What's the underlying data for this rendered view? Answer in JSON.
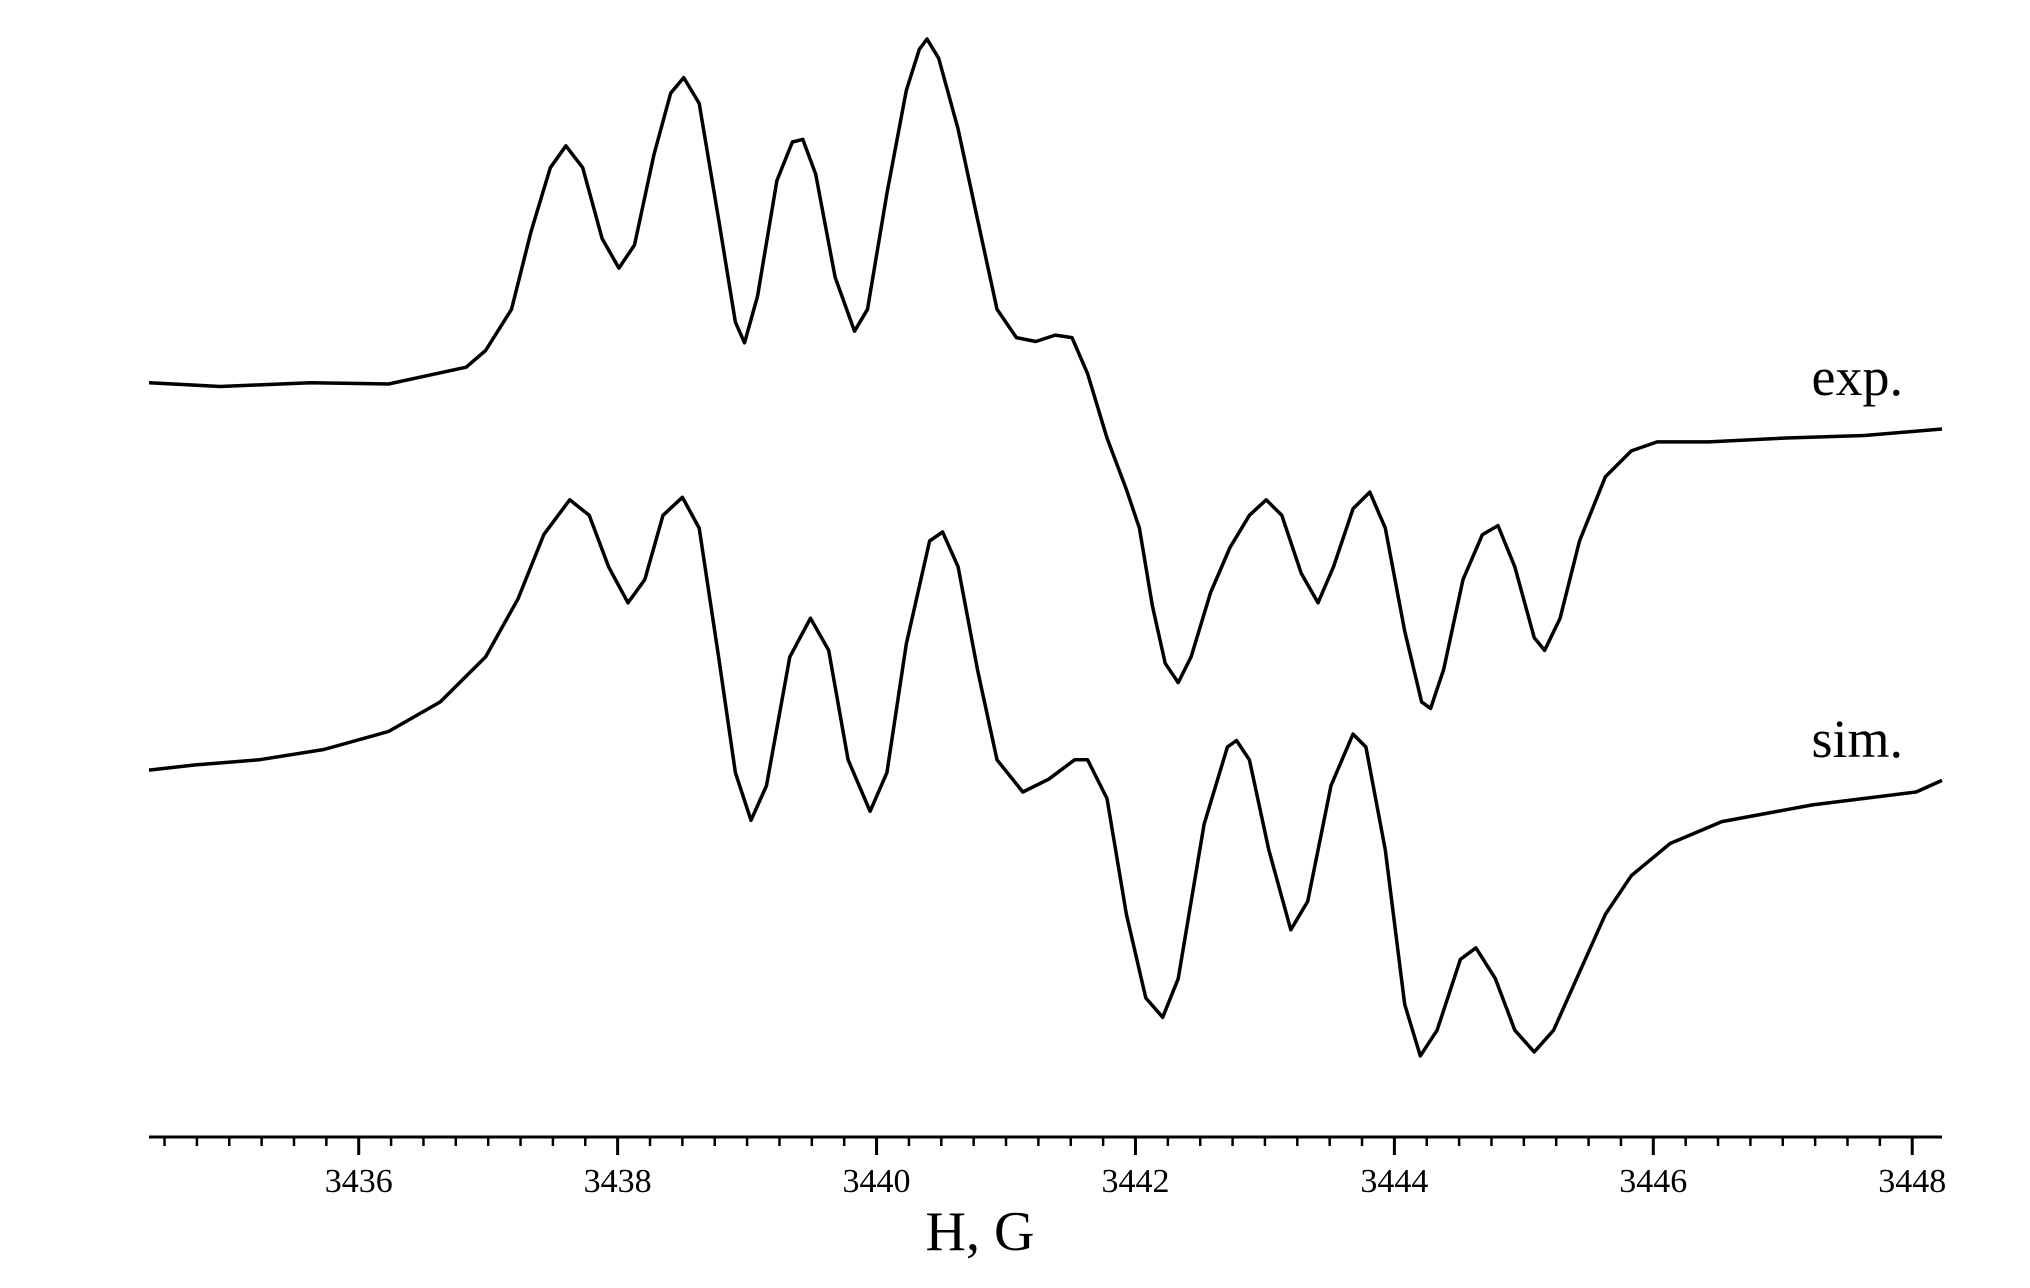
{
  "chart_data": {
    "type": "line",
    "x_label": "H, G",
    "annotations": [
      "exp.",
      "sim."
    ],
    "xlim": [
      3434.38,
      3448.23
    ],
    "xticks": [
      3436,
      3438,
      3440,
      3442,
      3444,
      3446,
      3448
    ],
    "xminorticks": [
      3434.5,
      3434.75,
      3435,
      3435.25,
      3435.5,
      3435.75,
      3436,
      3436.25,
      3436.5,
      3436.75,
      3437,
      3437.25,
      3437.5,
      3437.75,
      3438,
      3438.25,
      3438.5,
      3438.75,
      3439,
      3439.25,
      3439.5,
      3439.75,
      3440,
      3440.25,
      3440.5,
      3440.75,
      3441,
      3441.25,
      3441.5,
      3441.75,
      3442,
      3442.25,
      3442.5,
      3442.75,
      3443,
      3443.25,
      3443.5,
      3443.75,
      3444,
      3444.25,
      3444.5,
      3444.75,
      3445,
      3445.25,
      3445.5,
      3445.75,
      3446,
      3446.25,
      3446.5,
      3446.75,
      3447,
      3447.25,
      3447.5,
      3447.75,
      3448
    ],
    "color": "#000000",
    "series": [
      {
        "x": [
          3434.38,
          3434.93,
          3435.63,
          3436.23,
          3436.83,
          3436.98,
          3437.18,
          3437.33,
          3437.48,
          3437.6,
          3437.73,
          3437.88,
          3438.01,
          3438.13,
          3438.28,
          3438.41,
          3438.51,
          3438.63,
          3438.78,
          3438.91,
          3438.98,
          3439.08,
          3439.23,
          3439.35,
          3439.43,
          3439.53,
          3439.68,
          3439.83,
          3439.93,
          3440.08,
          3440.23,
          3440.33,
          3440.39,
          3440.48,
          3440.63,
          3440.78,
          3440.93,
          3441.08,
          3441.23,
          3441.38,
          3441.51,
          3441.63,
          3441.78,
          3441.93,
          3442.03,
          3442.13,
          3442.23,
          3442.33,
          3442.43,
          3442.58,
          3442.73,
          3442.88,
          3443.01,
          3443.13,
          3443.28,
          3443.41,
          3443.53,
          3443.68,
          3443.81,
          3443.93,
          3444.08,
          3444.21,
          3444.28,
          3444.38,
          3444.53,
          3444.68,
          3444.8,
          3444.93,
          3445.08,
          3445.16,
          3445.28,
          3445.43,
          3445.63,
          3445.83,
          3446.03,
          3446.43,
          3447.03,
          3447.63,
          3448.23
        ],
        "values": [
          586,
          583,
          586,
          585,
          598,
          611,
          643,
          703,
          753,
          770,
          753,
          698,
          675,
          693,
          763,
          811,
          823,
          803,
          713,
          633,
          617,
          653,
          743,
          773,
          775,
          748,
          668,
          626,
          643,
          733,
          813,
          845,
          853,
          838,
          783,
          713,
          643,
          621,
          618,
          623,
          621,
          593,
          543,
          503,
          473,
          413,
          368,
          353,
          373,
          423,
          458,
          483,
          495,
          483,
          438,
          415,
          443,
          488,
          501,
          473,
          393,
          338,
          333,
          363,
          433,
          468,
          475,
          443,
          388,
          378,
          403,
          463,
          513,
          533,
          540,
          540,
          543,
          545,
          550
        ]
      },
      {
        "x": [
          3434.38,
          3434.73,
          3435.23,
          3435.73,
          3436.23,
          3436.63,
          3436.98,
          3437.23,
          3437.43,
          3437.63,
          3437.78,
          3437.93,
          3438.08,
          3438.21,
          3438.35,
          3438.5,
          3438.63,
          3438.78,
          3438.91,
          3439.03,
          3439.15,
          3439.33,
          3439.49,
          3439.63,
          3439.78,
          3439.95,
          3440.08,
          3440.23,
          3440.41,
          3440.51,
          3440.63,
          3440.78,
          3440.93,
          3441.13,
          3441.33,
          3441.53,
          3441.63,
          3441.78,
          3441.93,
          3442.08,
          3442.21,
          3442.33,
          3442.53,
          3442.71,
          3442.78,
          3442.88,
          3443.03,
          3443.2,
          3443.33,
          3443.51,
          3443.68,
          3443.78,
          3443.93,
          3444.08,
          3444.2,
          3444.33,
          3444.51,
          3444.63,
          3444.78,
          3444.93,
          3445.08,
          3445.23,
          3445.43,
          3445.63,
          3445.83,
          3446.13,
          3446.53,
          3447.23,
          3448.03,
          3448.23
        ],
        "values": [
          285,
          289,
          293,
          301,
          315,
          338,
          373,
          418,
          468,
          495,
          483,
          443,
          415,
          433,
          483,
          497,
          473,
          373,
          283,
          246,
          273,
          373,
          403,
          378,
          293,
          253,
          283,
          383,
          463,
          470,
          443,
          363,
          293,
          268,
          278,
          293,
          293,
          263,
          173,
          108,
          93,
          123,
          243,
          303,
          308,
          293,
          223,
          161,
          183,
          273,
          313,
          303,
          223,
          103,
          63,
          83,
          138,
          147,
          123,
          83,
          66,
          83,
          128,
          173,
          203,
          228,
          245,
          258,
          268,
          277
        ]
      }
    ]
  }
}
